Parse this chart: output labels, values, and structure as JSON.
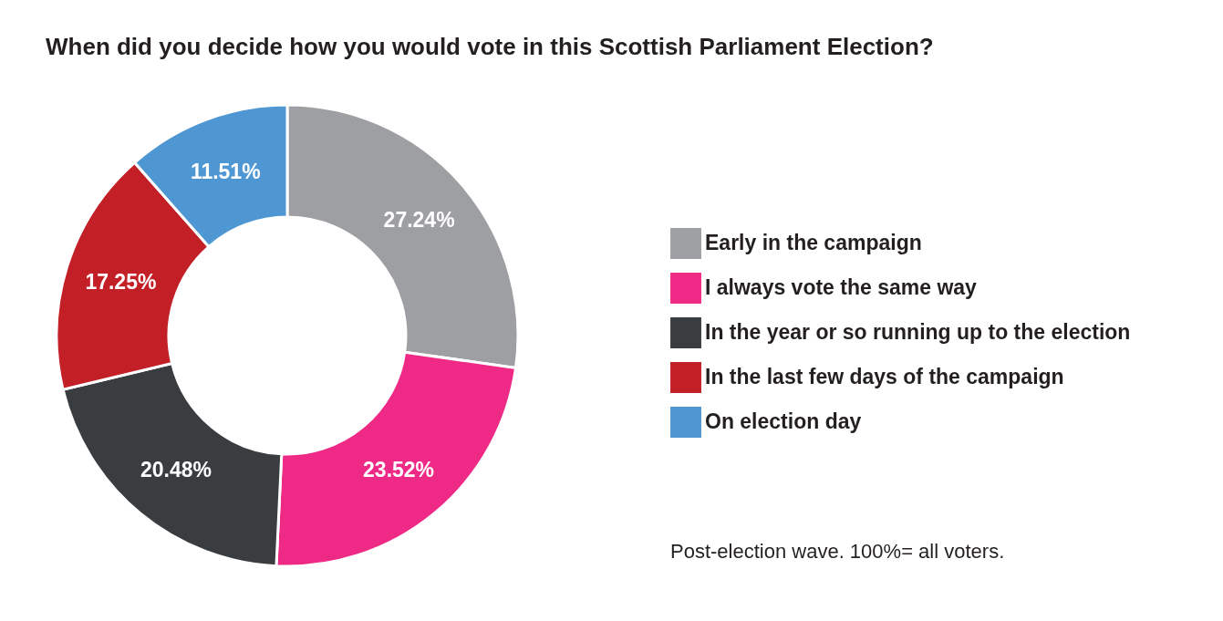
{
  "chart_data": {
    "type": "donut",
    "title": "When did you decide how you would vote in this Scottish Parliament Election?",
    "categories": [
      "Early in the campaign",
      "I always vote the same way",
      "In the year or so running up to the election",
      "In the last few days of the campaign",
      "On election day"
    ],
    "values": [
      27.24,
      23.52,
      20.48,
      17.25,
      11.51
    ],
    "colors": [
      "#9d9fa2",
      "#ee2a86",
      "#393d40",
      "#c21f26",
      "#4f97d3"
    ],
    "value_labels": [
      "27.24%",
      "23.52%",
      "20.48%",
      "17.25%",
      "11.51%"
    ],
    "legend": "right",
    "annotations": [
      "Post-election wave. 100%= all voters."
    ]
  }
}
